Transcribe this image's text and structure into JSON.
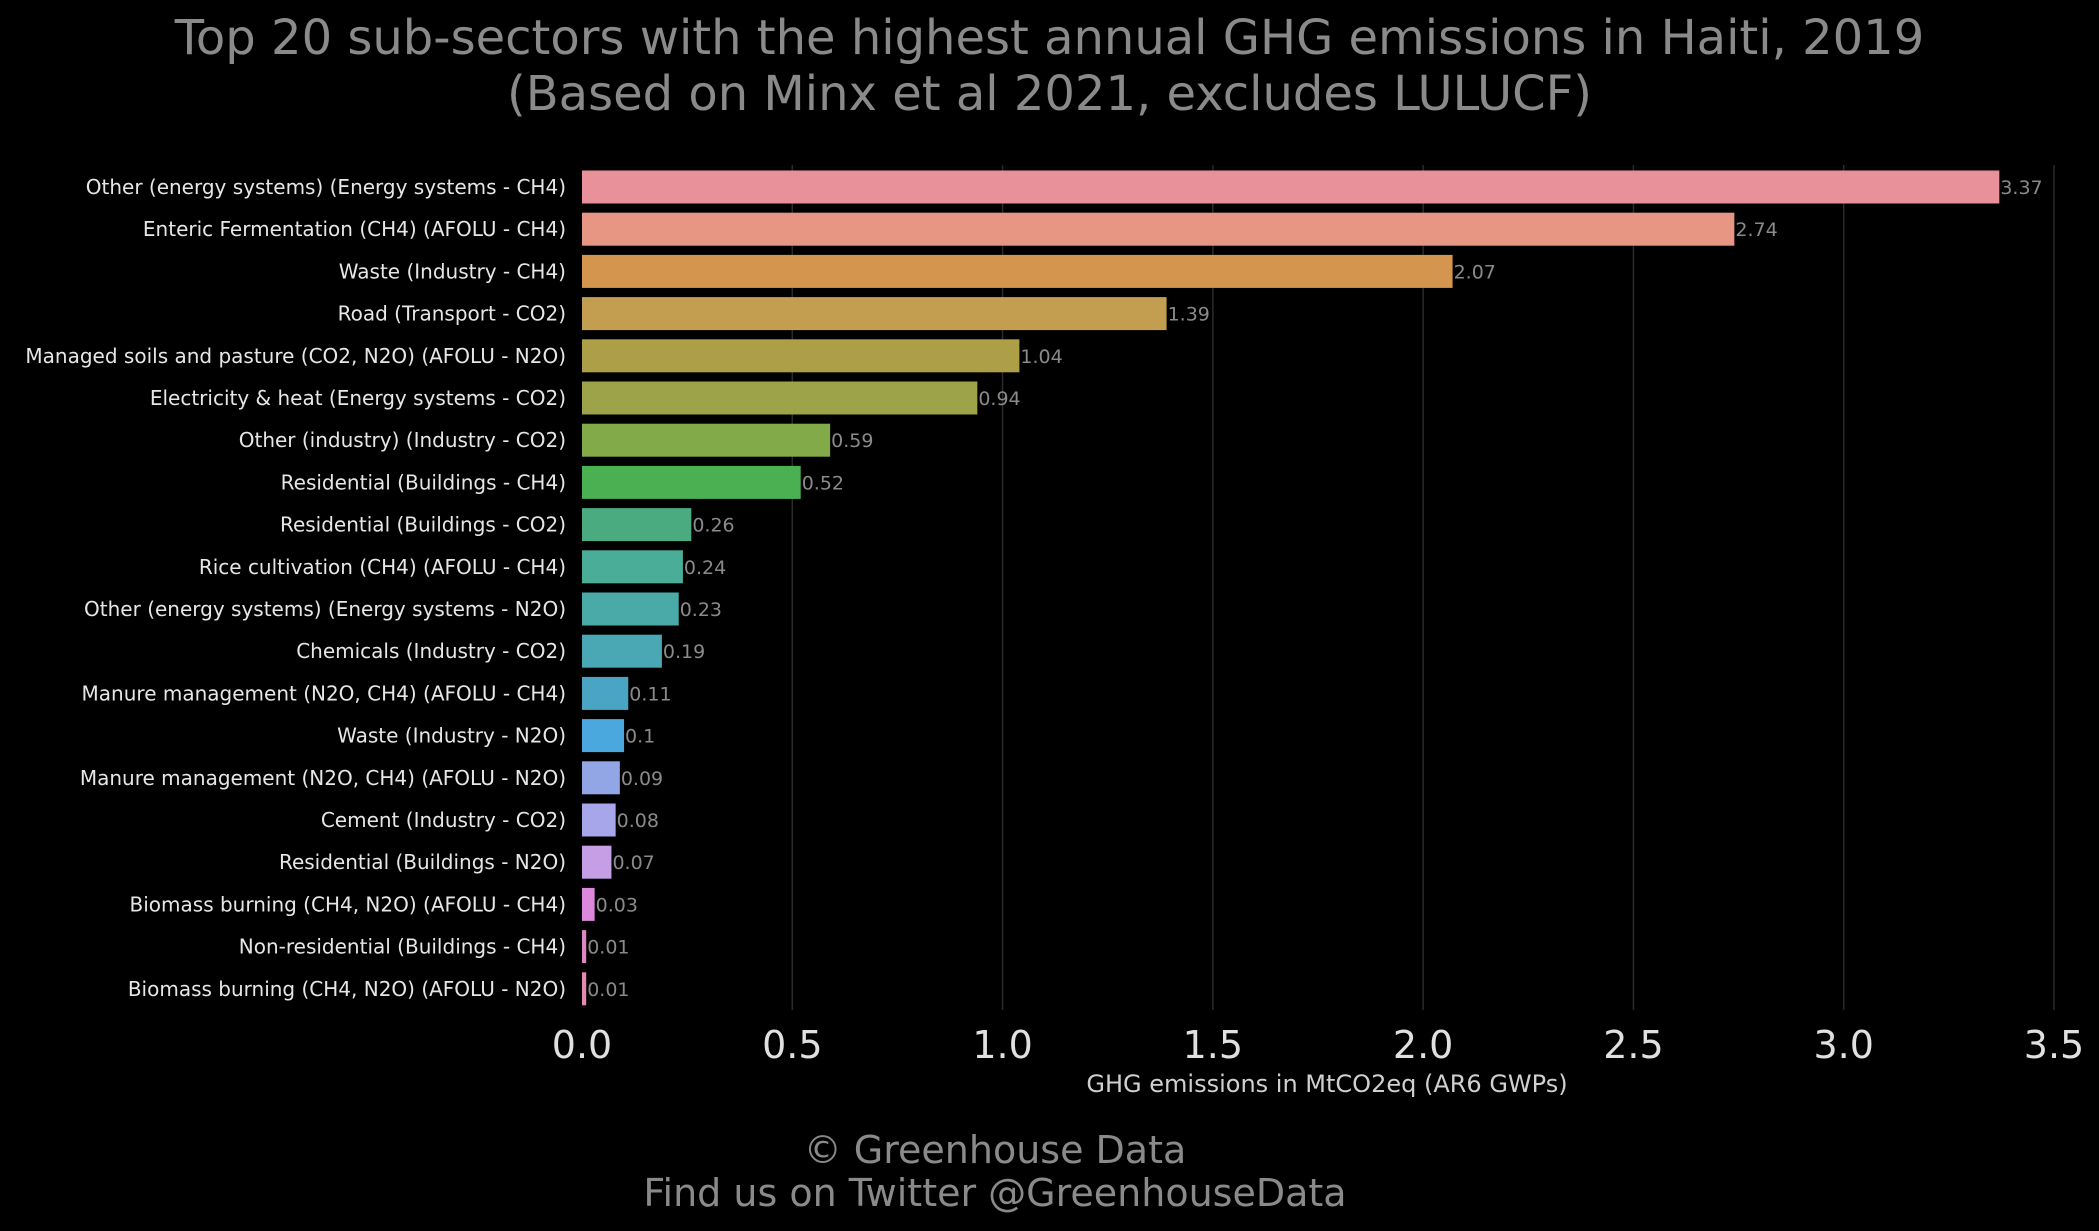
{
  "chart_data": {
    "type": "bar",
    "orientation": "horizontal",
    "title": "Top 20 sub-sectors with the highest annual GHG emissions in Haiti, 2019",
    "subtitle": "(Based on Minx et al 2021, excludes LULUCF)",
    "xlabel": "GHG emissions in MtCO2eq (AR6 GWPs)",
    "ylabel": "",
    "xlim": [
      0,
      3.5
    ],
    "xticks": [
      "0.0",
      "0.5",
      "1.0",
      "1.5",
      "2.0",
      "2.5",
      "3.0",
      "3.5"
    ],
    "grid": "vertical",
    "categories": [
      "Other (energy systems) (Energy systems - CH4)",
      "Enteric Fermentation (CH4) (AFOLU - CH4)",
      "Waste (Industry - CH4)",
      "Road (Transport - CO2)",
      "Managed soils and pasture (CO2, N2O) (AFOLU - N2O)",
      "Electricity & heat (Energy systems - CO2)",
      "Other (industry) (Industry - CO2)",
      "Residential (Buildings - CH4)",
      "Residential (Buildings - CO2)",
      "Rice cultivation (CH4) (AFOLU - CH4)",
      "Other (energy systems) (Energy systems - N2O)",
      "Chemicals (Industry - CO2)",
      "Manure management (N2O, CH4) (AFOLU - CH4)",
      "Waste (Industry - N2O)",
      "Manure management (N2O, CH4) (AFOLU - N2O)",
      "Cement (Industry - CO2)",
      "Residential (Buildings - N2O)",
      "Biomass burning (CH4, N2O) (AFOLU - CH4)",
      "Non-residential (Buildings - CH4)",
      "Biomass burning (CH4, N2O) (AFOLU - N2O)"
    ],
    "values": [
      3.37,
      2.74,
      2.07,
      1.39,
      1.04,
      0.94,
      0.59,
      0.52,
      0.26,
      0.24,
      0.23,
      0.19,
      0.11,
      0.1,
      0.09,
      0.08,
      0.07,
      0.03,
      0.01,
      0.01
    ],
    "value_labels": [
      "3.37",
      "2.74",
      "2.07",
      "1.39",
      "1.04",
      "0.94",
      "0.59",
      "0.52",
      "0.26",
      "0.24",
      "0.23",
      "0.19",
      "0.11",
      "0.1",
      "0.09",
      "0.08",
      "0.07",
      "0.03",
      "0.01",
      "0.01"
    ],
    "colors": [
      "#e8919a",
      "#e89684",
      "#d4954e",
      "#c39d50",
      "#ad9e48",
      "#9da348",
      "#82aa49",
      "#4bb052",
      "#4aab80",
      "#4aad98",
      "#4aaaa8",
      "#4aa8b4",
      "#4aa4c4",
      "#4aa8de",
      "#92a6e6",
      "#a8a6ea",
      "#c59ee6",
      "#dc88dc",
      "#de88c2",
      "#e28ab0"
    ]
  },
  "footer": {
    "copyright": "© Greenhouse Data",
    "twitter": "Find us on Twitter @GreenhouseData"
  }
}
